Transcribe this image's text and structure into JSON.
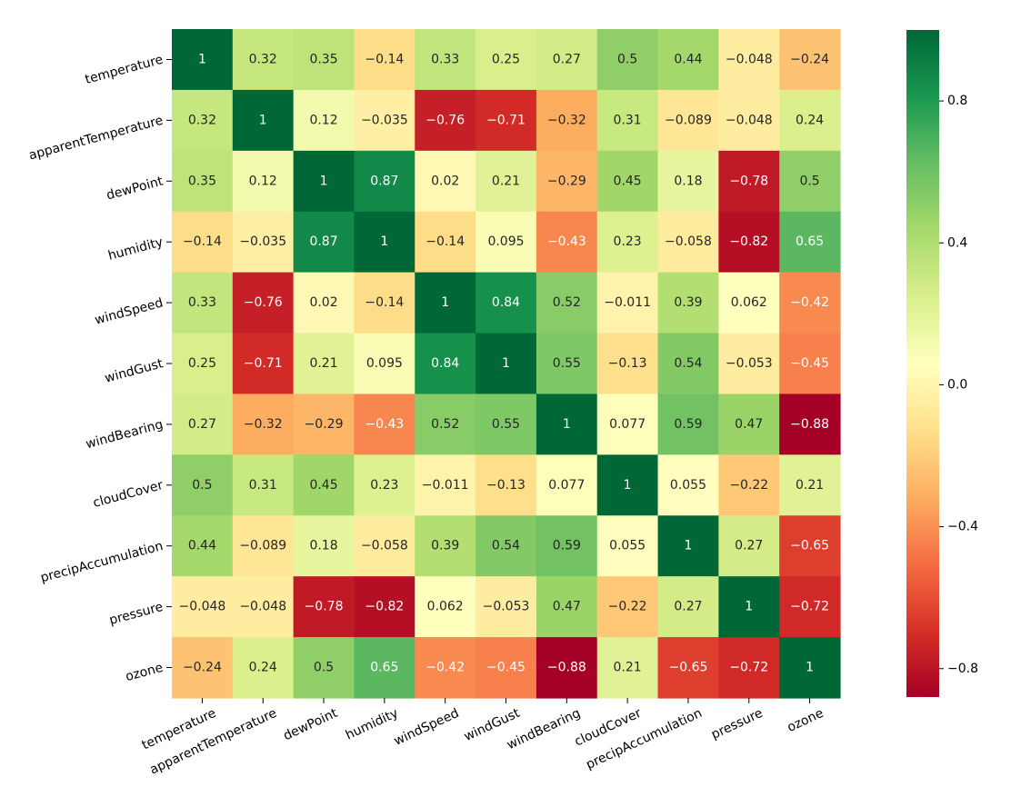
{
  "chart_data": {
    "type": "heatmap",
    "title": "",
    "xlabel": "",
    "ylabel": "",
    "variables": [
      "temperature",
      "apparentTemperature",
      "dewPoint",
      "humidity",
      "windSpeed",
      "windGust",
      "windBearing",
      "cloudCover",
      "precipAccumulation",
      "pressure",
      "ozone"
    ],
    "matrix": [
      [
        1,
        0.32,
        0.35,
        -0.14,
        0.33,
        0.25,
        0.27,
        0.5,
        0.44,
        -0.048,
        -0.24
      ],
      [
        0.32,
        1,
        0.12,
        -0.035,
        -0.76,
        -0.71,
        -0.32,
        0.31,
        -0.089,
        -0.048,
        0.24
      ],
      [
        0.35,
        0.12,
        1,
        0.87,
        0.02,
        0.21,
        -0.29,
        0.45,
        0.18,
        -0.78,
        0.5
      ],
      [
        -0.14,
        -0.035,
        0.87,
        1,
        -0.14,
        0.095,
        -0.43,
        0.23,
        -0.058,
        -0.82,
        0.65
      ],
      [
        0.33,
        -0.76,
        0.02,
        -0.14,
        1,
        0.84,
        0.52,
        -0.011,
        0.39,
        0.062,
        -0.42
      ],
      [
        0.25,
        -0.71,
        0.21,
        0.095,
        0.84,
        1,
        0.55,
        -0.13,
        0.54,
        -0.053,
        -0.45
      ],
      [
        0.27,
        -0.32,
        -0.29,
        -0.43,
        0.52,
        0.55,
        1,
        0.077,
        0.59,
        0.47,
        -0.88
      ],
      [
        0.5,
        0.31,
        0.45,
        0.23,
        -0.011,
        -0.13,
        0.077,
        1,
        0.055,
        -0.22,
        0.21
      ],
      [
        0.44,
        -0.089,
        0.18,
        -0.058,
        0.39,
        0.54,
        0.59,
        0.055,
        1,
        0.27,
        -0.65
      ],
      [
        -0.048,
        -0.048,
        -0.78,
        -0.82,
        0.062,
        -0.053,
        0.47,
        -0.22,
        0.27,
        1,
        -0.72
      ],
      [
        -0.24,
        0.24,
        0.5,
        0.65,
        -0.42,
        -0.45,
        -0.88,
        0.21,
        -0.65,
        -0.72,
        1
      ]
    ],
    "colormap": "RdYlGn",
    "vmin": -0.88,
    "vmax": 1,
    "annotations": true,
    "x_tick_rotation_deg": -25,
    "y_tick_rotation_deg": -15,
    "colorbar": {
      "ticks": [
        0.8,
        0.4,
        0.0,
        -0.4,
        -0.8
      ],
      "tick_labels": [
        "0.8",
        "0.4",
        "0.0",
        "−0.4",
        "−0.8"
      ],
      "placement": "right"
    },
    "annotation_text_dark": "#262626",
    "annotation_text_light": "#ffffff"
  }
}
